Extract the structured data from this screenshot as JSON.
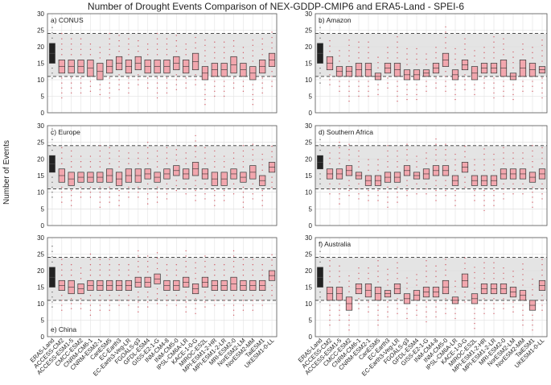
{
  "title": "Number of Drought Events Comparison of NEX-GDDP-CMIP6 and ERA5-Land - SPEI-6",
  "ylabel": "Number of Events",
  "models": [
    "ERA5-Land",
    "ACCESS-CM2",
    "ACCESS-ESM1-5",
    "CMCC-ESM2",
    "CNRM-CM6-1",
    "CNRM-ESM2-1",
    "CanESM5",
    "EC-Earth3",
    "EC-Earth3-Veg-LR",
    "FGOALS-g3",
    "GFDL-ESM4",
    "GISS-E2-1-G",
    "INM-CM4-8",
    "INM-CM5-0",
    "IPSL-CM6A-LR",
    "KACE-1-0-G",
    "MIROC-ES2L",
    "MPI-ESM1-2-HR",
    "MPI-ESM1-2-LR",
    "MRI-ESM2-0",
    "NorESM2-LM",
    "NorESM2-MM",
    "TaiESM1",
    "UKESM1-0-LL"
  ],
  "yticks": [
    "0",
    "5",
    "10",
    "15",
    "20",
    "25",
    "30"
  ],
  "chart_data": [
    {
      "type": "box",
      "label": "a) CONUS",
      "label_pos": "top",
      "ylim": [
        0,
        30
      ],
      "band": [
        11,
        24
      ],
      "boxes": [
        [
          15,
          21
        ],
        [
          12,
          16
        ],
        [
          12,
          16
        ],
        [
          12,
          16
        ],
        [
          11,
          16
        ],
        [
          10,
          15
        ],
        [
          12,
          16
        ],
        [
          13,
          17
        ],
        [
          12,
          16
        ],
        [
          13,
          17
        ],
        [
          12,
          16
        ],
        [
          12,
          16
        ],
        [
          12,
          16
        ],
        [
          13,
          17
        ],
        [
          12,
          16
        ],
        [
          13,
          18
        ],
        [
          10,
          14
        ],
        [
          11,
          15
        ],
        [
          11,
          15
        ],
        [
          12,
          17
        ],
        [
          11,
          15
        ],
        [
          10,
          14
        ],
        [
          12,
          16
        ],
        [
          14,
          18
        ]
      ]
    },
    {
      "type": "box",
      "label": "b) Amazon",
      "label_pos": "top",
      "ylim": [
        0,
        30
      ],
      "band": [
        11,
        24
      ],
      "boxes": [
        [
          15,
          21
        ],
        [
          13,
          17
        ],
        [
          11,
          14
        ],
        [
          11,
          14
        ],
        [
          11,
          15
        ],
        [
          11,
          15
        ],
        [
          10,
          12
        ],
        [
          12,
          15
        ],
        [
          11,
          15
        ],
        [
          10,
          13
        ],
        [
          10,
          13
        ],
        [
          11,
          13
        ],
        [
          12,
          15
        ],
        [
          14,
          18
        ],
        [
          10,
          13
        ],
        [
          13,
          16
        ],
        [
          10,
          14
        ],
        [
          12,
          15
        ],
        [
          12,
          15
        ],
        [
          11,
          16
        ],
        [
          10,
          12
        ],
        [
          11,
          16
        ],
        [
          11,
          15
        ],
        [
          12,
          14
        ]
      ]
    },
    {
      "type": "box",
      "label": "c) Europe",
      "label_pos": "top",
      "ylim": [
        0,
        30
      ],
      "band": [
        11,
        24
      ],
      "boxes": [
        [
          16,
          21
        ],
        [
          13,
          17
        ],
        [
          12,
          16
        ],
        [
          13,
          16
        ],
        [
          13,
          16
        ],
        [
          13,
          16
        ],
        [
          13,
          17
        ],
        [
          12,
          16
        ],
        [
          13,
          17
        ],
        [
          13,
          17
        ],
        [
          14,
          17
        ],
        [
          13,
          16
        ],
        [
          14,
          17
        ],
        [
          15,
          18
        ],
        [
          14,
          17
        ],
        [
          15,
          19
        ],
        [
          14,
          17
        ],
        [
          12,
          16
        ],
        [
          12,
          16
        ],
        [
          14,
          17
        ],
        [
          13,
          16
        ],
        [
          14,
          18
        ],
        [
          12,
          15
        ],
        [
          16,
          19
        ]
      ]
    },
    {
      "type": "box",
      "label": "d) Southern Africa",
      "label_pos": "top",
      "ylim": [
        0,
        30
      ],
      "band": [
        11,
        24
      ],
      "boxes": [
        [
          17,
          21
        ],
        [
          14,
          17
        ],
        [
          14,
          17
        ],
        [
          15,
          18
        ],
        [
          14,
          16
        ],
        [
          12,
          15
        ],
        [
          12,
          15
        ],
        [
          13,
          16
        ],
        [
          13,
          16
        ],
        [
          15,
          18
        ],
        [
          14,
          16
        ],
        [
          14,
          17
        ],
        [
          15,
          18
        ],
        [
          15,
          18
        ],
        [
          12,
          15
        ],
        [
          16,
          19
        ],
        [
          12,
          15
        ],
        [
          12,
          15
        ],
        [
          12,
          15
        ],
        [
          14,
          17
        ],
        [
          14,
          17
        ],
        [
          14,
          17
        ],
        [
          13,
          16
        ],
        [
          14,
          17
        ]
      ]
    },
    {
      "type": "box",
      "label": "e) China",
      "label_pos": "bottom",
      "ylim": [
        0,
        30
      ],
      "band": [
        11,
        24
      ],
      "boxes": [
        [
          15,
          21
        ],
        [
          14,
          17
        ],
        [
          13,
          17
        ],
        [
          13,
          16
        ],
        [
          14,
          17
        ],
        [
          14,
          17
        ],
        [
          14,
          17
        ],
        [
          14,
          17
        ],
        [
          14,
          17
        ],
        [
          15,
          18
        ],
        [
          15,
          18
        ],
        [
          16,
          19
        ],
        [
          14,
          17
        ],
        [
          14,
          17
        ],
        [
          15,
          18
        ],
        [
          13,
          16
        ],
        [
          15,
          18
        ],
        [
          14,
          17
        ],
        [
          14,
          17
        ],
        [
          14,
          18
        ],
        [
          14,
          17
        ],
        [
          14,
          17
        ],
        [
          14,
          17
        ],
        [
          17,
          20
        ]
      ]
    },
    {
      "type": "box",
      "label": "f) Australia",
      "label_pos": "top",
      "ylim": [
        0,
        30
      ],
      "band": [
        11,
        24
      ],
      "boxes": [
        [
          15,
          21
        ],
        [
          11,
          15
        ],
        [
          11,
          15
        ],
        [
          8,
          12
        ],
        [
          13,
          16
        ],
        [
          12,
          16
        ],
        [
          11,
          15
        ],
        [
          12,
          14
        ],
        [
          13,
          16
        ],
        [
          10,
          13
        ],
        [
          11,
          14
        ],
        [
          12,
          15
        ],
        [
          12,
          15
        ],
        [
          13,
          17
        ],
        [
          10,
          12
        ],
        [
          15,
          19
        ],
        [
          10,
          13
        ],
        [
          13,
          16
        ],
        [
          13,
          16
        ],
        [
          13,
          16
        ],
        [
          12,
          15
        ],
        [
          11,
          14
        ],
        [
          8,
          11
        ],
        [
          14,
          17
        ]
      ]
    }
  ]
}
